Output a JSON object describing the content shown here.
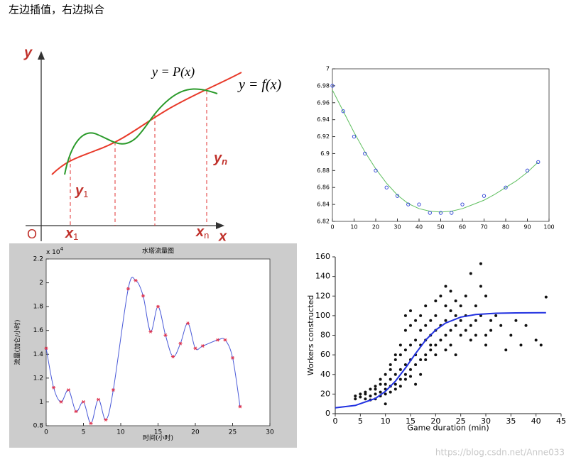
{
  "header": {
    "title": "左边插值，右边拟合"
  },
  "diagram": {
    "axis_y": "y",
    "axis_x": "x",
    "origin": "O",
    "interpolant": "y = P(x)",
    "function": "y = f(x)",
    "y1": {
      "base": "y",
      "sub": "1"
    },
    "yn": {
      "base": "y",
      "sub": "n"
    },
    "x1": {
      "base": "x",
      "sub": "1"
    },
    "xn": {
      "base": "x",
      "sub": "n"
    }
  },
  "chart_data": [
    {
      "type": "scatter",
      "xlim": [
        0,
        100
      ],
      "xticks": [
        0,
        10,
        20,
        30,
        40,
        50,
        60,
        70,
        80,
        90,
        100
      ],
      "ylim": [
        6.82,
        7
      ],
      "yticks": [
        6.82,
        6.84,
        6.86,
        6.88,
        6.9,
        6.92,
        6.94,
        6.96,
        6.98,
        7
      ],
      "series": [
        {
          "style": "line",
          "color": "#5fbf5f",
          "x": [
            0,
            5,
            10,
            15,
            20,
            25,
            30,
            35,
            40,
            45,
            50,
            55,
            60,
            65,
            70,
            75,
            80,
            85,
            90,
            95
          ],
          "values": [
            6.975,
            6.95,
            6.925,
            6.902,
            6.882,
            6.865,
            6.851,
            6.841,
            6.835,
            6.832,
            6.831,
            6.832,
            6.835,
            6.84,
            6.845,
            6.852,
            6.86,
            6.868,
            6.878,
            6.89
          ]
        },
        {
          "style": "circle",
          "color": "#2a3fd6",
          "x": [
            0,
            5,
            10,
            15,
            20,
            25,
            30,
            35,
            40,
            45,
            50,
            55,
            60,
            70,
            80,
            90,
            95
          ],
          "values": [
            6.98,
            6.95,
            6.92,
            6.9,
            6.88,
            6.86,
            6.85,
            6.84,
            6.84,
            6.83,
            6.83,
            6.83,
            6.84,
            6.85,
            6.86,
            6.88,
            6.89
          ]
        }
      ]
    },
    {
      "type": "line",
      "title": "水塔流量图",
      "xlabel": "时间(小时)",
      "ylabel": "流量(加仑/小时)",
      "y_scale": {
        "base": "x 10",
        "exponent": "4"
      },
      "xlim": [
        0,
        30
      ],
      "xticks": [
        0,
        5,
        10,
        15,
        20,
        25,
        30
      ],
      "ylim": [
        0.8,
        2.2
      ],
      "yticks": [
        0.8,
        1,
        1.2,
        1.4,
        1.6,
        1.8,
        2,
        2.2
      ],
      "series": [
        {
          "style": "smooth",
          "color": "#4a5ad8",
          "x": [
            0,
            1,
            2,
            3,
            4,
            5,
            6,
            7,
            8,
            9,
            11,
            12,
            13,
            14,
            15,
            16,
            17,
            18,
            19,
            20,
            21,
            23,
            24,
            25,
            26
          ],
          "values": [
            1.45,
            1.12,
            1.0,
            1.1,
            0.92,
            1.0,
            0.82,
            1.02,
            0.85,
            1.1,
            1.95,
            2.02,
            1.89,
            1.59,
            1.8,
            1.56,
            1.38,
            1.49,
            1.66,
            1.45,
            1.47,
            1.52,
            1.52,
            1.37,
            0.96
          ]
        },
        {
          "style": "star",
          "color": "#e0304a",
          "x": [
            0,
            1,
            2,
            3,
            4,
            5,
            6,
            7,
            8,
            9,
            11,
            12,
            13,
            14,
            15,
            16,
            17,
            18,
            19,
            20,
            21,
            23,
            24,
            25,
            26
          ],
          "values": [
            1.45,
            1.12,
            1.0,
            1.1,
            0.92,
            1.0,
            0.82,
            1.02,
            0.85,
            1.1,
            1.95,
            2.02,
            1.89,
            1.59,
            1.8,
            1.56,
            1.38,
            1.49,
            1.66,
            1.45,
            1.47,
            1.52,
            1.52,
            1.37,
            0.96
          ]
        }
      ]
    },
    {
      "type": "scatter",
      "xlabel": "Game duration (min)",
      "ylabel": "Workers constructed",
      "xlim": [
        0,
        45
      ],
      "xticks": [
        0,
        5,
        10,
        15,
        20,
        25,
        30,
        35,
        40,
        45
      ],
      "ylim": [
        0,
        160
      ],
      "yticks": [
        0,
        20,
        40,
        60,
        80,
        100,
        120,
        140,
        160
      ],
      "series": [
        {
          "style": "dot",
          "color": "#111111",
          "x": [
            4,
            4,
            5,
            5,
            6,
            6,
            6,
            7,
            7,
            7,
            8,
            8,
            8,
            8,
            9,
            9,
            9,
            9,
            10,
            10,
            10,
            10,
            10,
            11,
            11,
            11,
            11,
            11,
            12,
            12,
            12,
            12,
            12,
            13,
            13,
            13,
            13,
            13,
            14,
            14,
            14,
            14,
            14,
            14,
            15,
            15,
            15,
            15,
            15,
            15,
            16,
            16,
            16,
            16,
            16,
            17,
            17,
            17,
            17,
            17,
            18,
            18,
            18,
            18,
            18,
            19,
            19,
            19,
            19,
            20,
            20,
            20,
            20,
            20,
            21,
            21,
            21,
            22,
            22,
            22,
            22,
            22,
            23,
            23,
            23,
            23,
            24,
            24,
            24,
            24,
            25,
            25,
            25,
            26,
            26,
            26,
            27,
            27,
            27,
            28,
            28,
            28,
            29,
            29,
            29,
            30,
            30,
            30,
            31,
            31,
            32,
            33,
            34,
            35,
            36,
            37,
            38,
            40,
            41,
            42
          ],
          "values": [
            18,
            15,
            17,
            20,
            15,
            20,
            22,
            18,
            25,
            14,
            20,
            25,
            28,
            15,
            22,
            30,
            35,
            18,
            25,
            30,
            40,
            20,
            10,
            28,
            35,
            45,
            50,
            22,
            30,
            40,
            55,
            60,
            25,
            35,
            45,
            60,
            70,
            28,
            40,
            50,
            65,
            85,
            100,
            35,
            45,
            55,
            70,
            90,
            105,
            38,
            50,
            60,
            75,
            95,
            30,
            55,
            70,
            85,
            100,
            40,
            60,
            75,
            90,
            110,
            55,
            65,
            80,
            95,
            70,
            70,
            85,
            100,
            115,
            60,
            75,
            90,
            120,
            80,
            95,
            110,
            130,
            65,
            85,
            105,
            125,
            70,
            90,
            100,
            115,
            60,
            80,
            95,
            110,
            85,
            100,
            120,
            90,
            75,
            143,
            95,
            110,
            80,
            130,
            153,
            100,
            80,
            120,
            70,
            85,
            95,
            100,
            90,
            65,
            80,
            95,
            70,
            90,
            75,
            70,
            119
          ]
        },
        {
          "style": "line",
          "color": "#2030e0",
          "x": [
            0,
            4,
            8,
            10,
            12,
            14,
            16,
            18,
            20,
            22,
            25,
            28,
            32,
            36,
            42
          ],
          "values": [
            6,
            8.4,
            15.5,
            22.8,
            33.2,
            46.7,
            61.3,
            75,
            85.3,
            92.5,
            98.5,
            101.2,
            102.4,
            102.8,
            103
          ]
        }
      ]
    }
  ],
  "watermark": "https://blog.csdn.net/Anne033"
}
